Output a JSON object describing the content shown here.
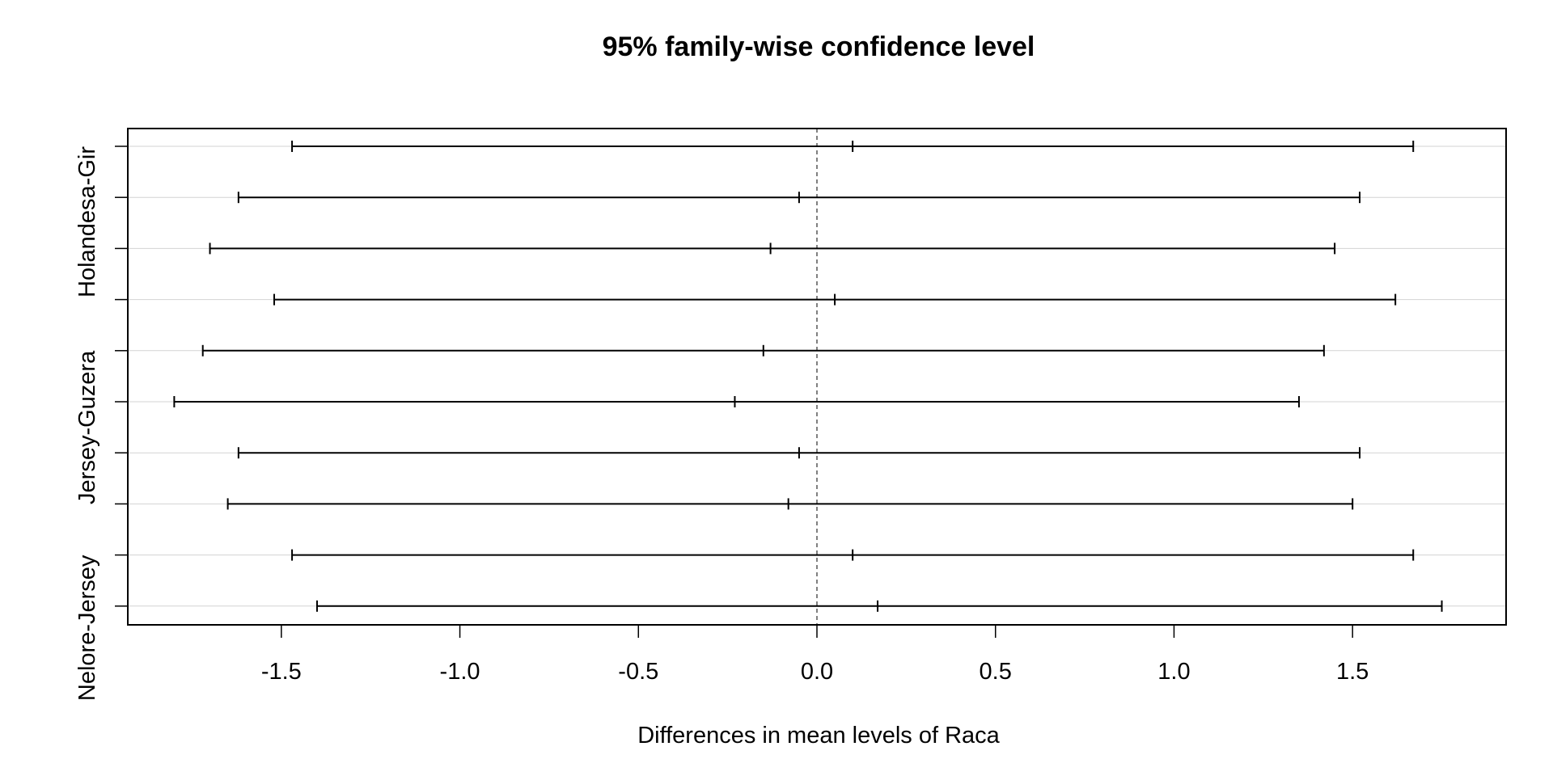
{
  "chart_data": {
    "type": "errorbar",
    "title": "95% family-wise confidence level",
    "xlabel": "Differences in mean levels of Raca",
    "ylabel": "",
    "xlim": [
      -1.93,
      1.93
    ],
    "x_ticks": [
      -1.5,
      -1.0,
      -0.5,
      0.0,
      0.5,
      1.0,
      1.5
    ],
    "x_tick_labels": [
      "-1.5",
      "-1.0",
      "-0.5",
      "0.0",
      "0.5",
      "1.0",
      "1.5"
    ],
    "reference_line": 0,
    "grid": true,
    "y_tick_labels": [
      {
        "row": 0,
        "label": "Holandesa-Gir"
      },
      {
        "row": 4,
        "label": "Jersey-Guzera"
      },
      {
        "row": 8,
        "label": "Nelore-Jersey"
      }
    ],
    "intervals": [
      {
        "lwr": -1.47,
        "diff": 0.1,
        "upr": 1.67
      },
      {
        "lwr": -1.62,
        "diff": -0.05,
        "upr": 1.52
      },
      {
        "lwr": -1.7,
        "diff": -0.13,
        "upr": 1.45
      },
      {
        "lwr": -1.52,
        "diff": 0.05,
        "upr": 1.62
      },
      {
        "lwr": -1.72,
        "diff": -0.15,
        "upr": 1.42
      },
      {
        "lwr": -1.8,
        "diff": -0.23,
        "upr": 1.35
      },
      {
        "lwr": -1.62,
        "diff": -0.05,
        "upr": 1.52
      },
      {
        "lwr": -1.65,
        "diff": -0.08,
        "upr": 1.5
      },
      {
        "lwr": -1.47,
        "diff": 0.1,
        "upr": 1.67
      },
      {
        "lwr": -1.4,
        "diff": 0.17,
        "upr": 1.75
      }
    ]
  }
}
